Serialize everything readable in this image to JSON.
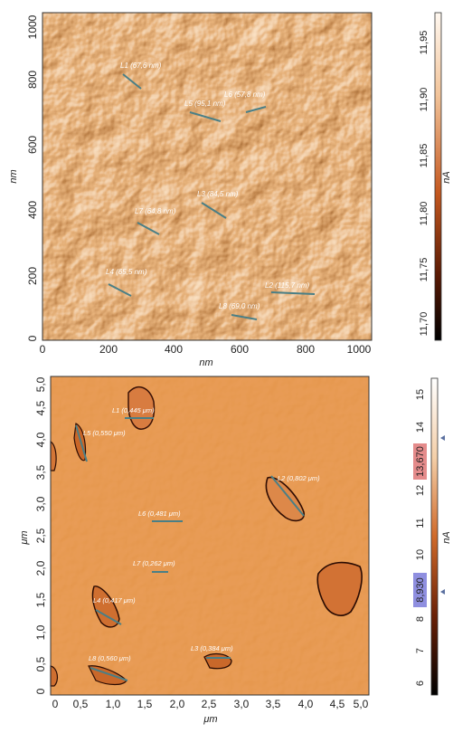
{
  "top_panel": {
    "x_label": "nm",
    "y_label": "nm",
    "x_ticks": [
      "0",
      "200",
      "400",
      "600",
      "800",
      "1000"
    ],
    "y_ticks": [
      "0",
      "200",
      "400",
      "600",
      "800",
      "1000"
    ],
    "annotations": [
      {
        "text": "L1 (67,6 nm)"
      },
      {
        "text": "L6 (57,8 nm)"
      },
      {
        "text": "L5 (95,1 nm)"
      },
      {
        "text": "L3 (84,5 nm)"
      },
      {
        "text": "L7 (64,8 nm)"
      },
      {
        "text": "L4 (65,5 nm)"
      },
      {
        "text": "L2 (115,7 nm)"
      },
      {
        "text": "L8 (69,0 nm)"
      }
    ],
    "colorbar": {
      "unit": "nA",
      "ticks": [
        "11,95",
        "11,90",
        "11,85",
        "11,80",
        "11,75",
        "11,70"
      ]
    }
  },
  "bottom_panel": {
    "x_label": "μm",
    "y_label": "μm",
    "x_ticks": [
      "0",
      "0,5",
      "1,0",
      "1,5",
      "2,0",
      "2,5",
      "3,0",
      "3,5",
      "4,0",
      "4,5",
      "5,0"
    ],
    "y_ticks": [
      "0",
      "0,5",
      "1,0",
      "1,5",
      "2,0",
      "2,5",
      "3,0",
      "3,5",
      "4,0",
      "4,5",
      "5,0"
    ],
    "annotations": [
      {
        "text": "L1 (0,445 μm)"
      },
      {
        "text": "L5 (0,550 μm)"
      },
      {
        "text": "L2 (0,802 μm)"
      },
      {
        "text": "L6 (0,481 μm)"
      },
      {
        "text": "L7 (0,262 μm)"
      },
      {
        "text": "L4 (0,417 μm)"
      },
      {
        "text": "L3 (0,384 μm)"
      },
      {
        "text": "L8 (0,560 μm)"
      }
    ],
    "colorbar": {
      "unit": "nA",
      "ticks": [
        "15",
        "14",
        "13",
        "12",
        "11",
        "10",
        "9",
        "8",
        "7",
        "6"
      ],
      "marker_high": "13,670",
      "marker_low": "8,930"
    }
  },
  "colors": {
    "afm_dark": "#3a0f02",
    "afm_mid": "#c4581f",
    "afm_light": "#f2c49a",
    "line_marker": "#4a7f86",
    "marker_high_bg": "#e48b8b",
    "marker_low_bg": "#8f8fe0"
  }
}
